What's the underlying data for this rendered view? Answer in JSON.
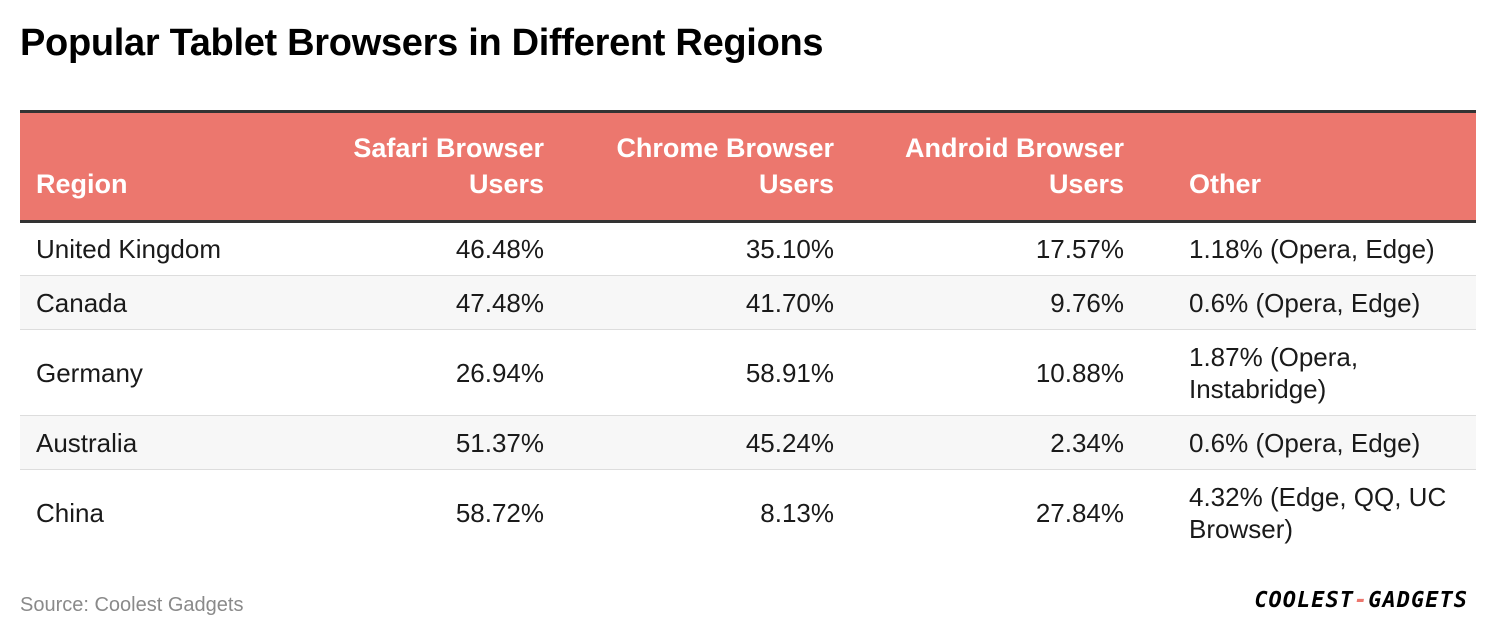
{
  "title": "Popular Tablet Browsers in Different Regions",
  "source": "Source: Coolest Gadgets",
  "logo": {
    "left": "COOLEST",
    "dash": "-",
    "right": "GADGETS"
  },
  "colors": {
    "header_bg": "#ec776e",
    "header_text": "#ffffff",
    "rule": "#333333",
    "stripe": "#f7f7f7"
  },
  "chart_data": {
    "type": "table",
    "columns": [
      "Region",
      "Safari Browser Users",
      "Chrome Browser Users",
      "Android Browser Users",
      "Other"
    ],
    "rows": [
      [
        "United Kingdom",
        "46.48%",
        "35.10%",
        "17.57%",
        "1.18% (Opera, Edge)"
      ],
      [
        "Canada",
        "47.48%",
        "41.70%",
        "9.76%",
        "0.6% (Opera, Edge)"
      ],
      [
        "Germany",
        "26.94%",
        "58.91%",
        "10.88%",
        "1.87% (Opera, Instabridge)"
      ],
      [
        "Australia",
        "51.37%",
        "45.24%",
        "2.34%",
        "0.6% (Opera, Edge)"
      ],
      [
        "China",
        "58.72%",
        "8.13%",
        "27.84%",
        "4.32% (Edge, QQ, UC Browser)"
      ]
    ]
  }
}
